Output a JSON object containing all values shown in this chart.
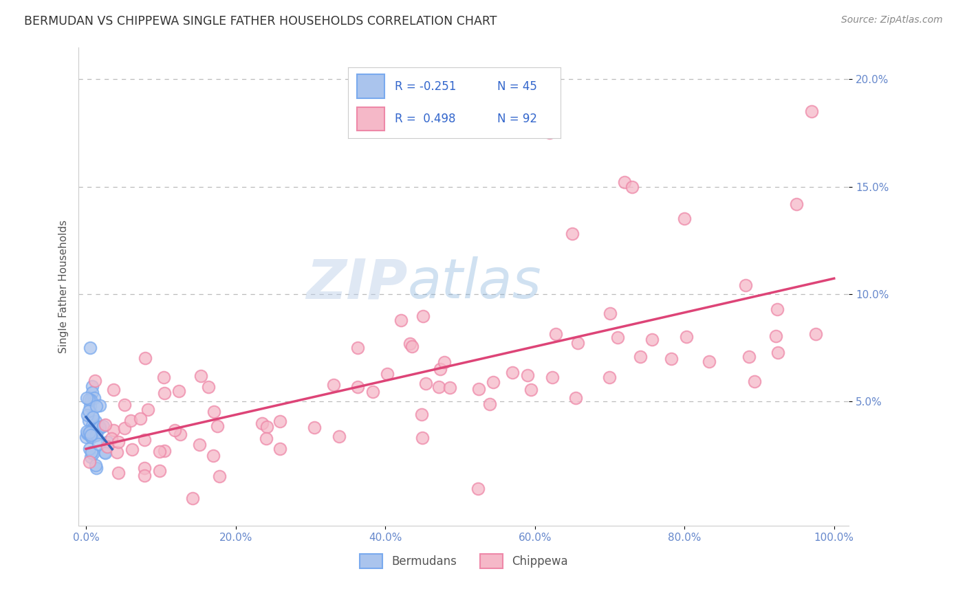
{
  "title": "BERMUDAN VS CHIPPEWA SINGLE FATHER HOUSEHOLDS CORRELATION CHART",
  "source": "Source: ZipAtlas.com",
  "ylabel": "Single Father Households",
  "bermudan_color": "#aac4ed",
  "bermudan_edge": "#7aaaee",
  "chippewa_color": "#f5b8c8",
  "chippewa_edge": "#ee88a8",
  "trend_blue": "#3366bb",
  "trend_pink": "#dd4477",
  "watermark_zip": "ZIP",
  "watermark_atlas": "atlas",
  "background_color": "#ffffff",
  "grid_color": "#bbbbbb",
  "title_color": "#333333",
  "axis_label_color": "#555555",
  "tick_color": "#6688cc",
  "legend_text_color": "#3366cc",
  "source_color": "#888888"
}
